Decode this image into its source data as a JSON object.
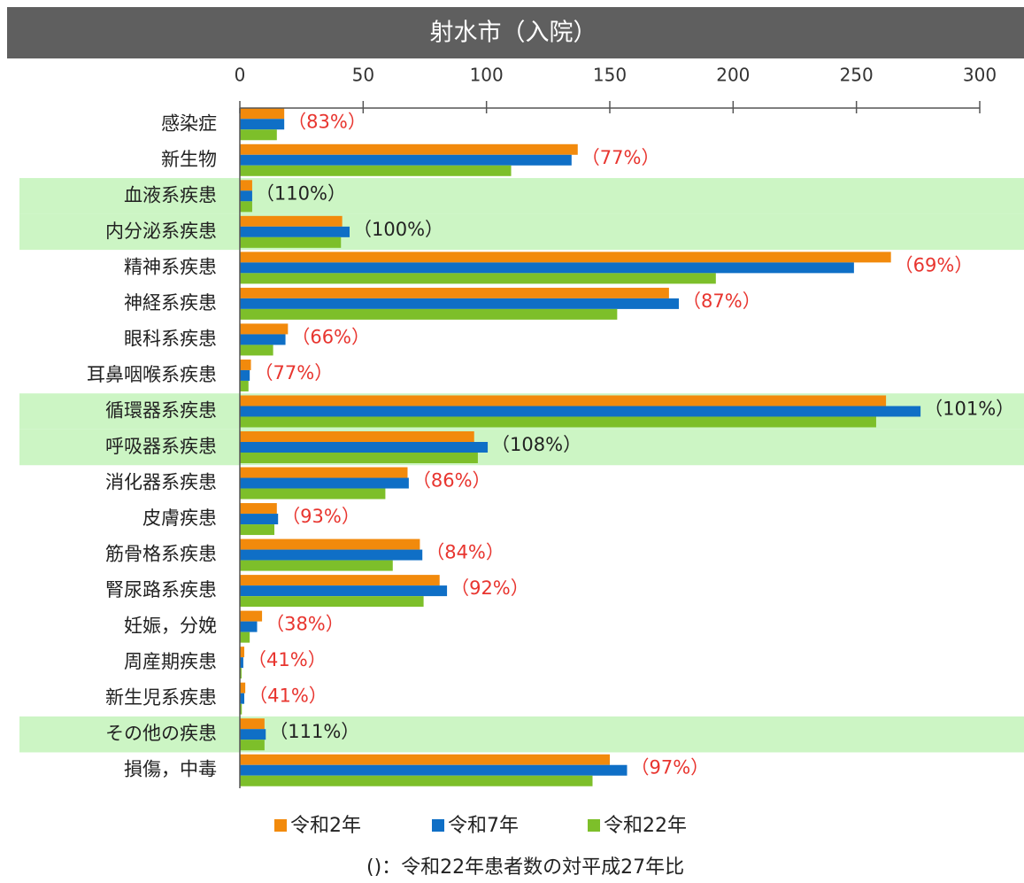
{
  "chart_data": {
    "type": "barh",
    "title": "射水市（入院）",
    "categories": [
      "感染症",
      "新生物",
      "血液系疾患",
      "内分泌系疾患",
      "精神系疾患",
      "神経系疾患",
      "眼科系疾患",
      "耳鼻咽喉系疾患",
      "循環器系疾患",
      "呼吸器系疾患",
      "消化器系疾患",
      "皮膚疾患",
      "筋骨格系疾患",
      "腎尿路系疾患",
      "妊娠，分娩",
      "周産期疾患",
      "新生児系疾患",
      "その他の疾患",
      "損傷，中毒"
    ],
    "series": [
      {
        "name": "令和2年",
        "color": "#f28a0c",
        "values": [
          18,
          137,
          5,
          41.5,
          264,
          174,
          19.5,
          4.5,
          262,
          95,
          68,
          15,
          73,
          81,
          9,
          1.8,
          2.2,
          10,
          150
        ]
      },
      {
        "name": "令和7年",
        "color": "#0f6fc6",
        "values": [
          18,
          134.5,
          5,
          44.5,
          249,
          178,
          18.5,
          4,
          276,
          100.5,
          68.5,
          15.5,
          74,
          84,
          7,
          1.4,
          1.8,
          10.5,
          157
        ]
      },
      {
        "name": "令和22年",
        "color": "#7dbf2a",
        "values": [
          15,
          110,
          5,
          41,
          193,
          153,
          13.5,
          3.5,
          258,
          96.5,
          59,
          14,
          62,
          74.5,
          4,
          0.7,
          0.8,
          10,
          143
        ]
      }
    ],
    "annotations": [
      "（83%）",
      "（77%）",
      "（110%）",
      "（100%）",
      "（69%）",
      "（87%）",
      "（66%）",
      "（77%）",
      "（101%）",
      "（108%）",
      "（86%）",
      "（93%）",
      "（84%）",
      "（92%）",
      "（38%）",
      "（41%）",
      "（41%）",
      "（111%）",
      "（97%）"
    ],
    "highlighted": [
      false,
      false,
      true,
      true,
      false,
      false,
      false,
      false,
      true,
      true,
      false,
      false,
      false,
      false,
      false,
      false,
      false,
      true,
      false
    ],
    "xlim": [
      0,
      300
    ],
    "xticks": [
      0,
      50,
      100,
      150,
      200,
      250,
      300
    ],
    "footnote": "()：令和22年患者数の対平成27年比"
  }
}
